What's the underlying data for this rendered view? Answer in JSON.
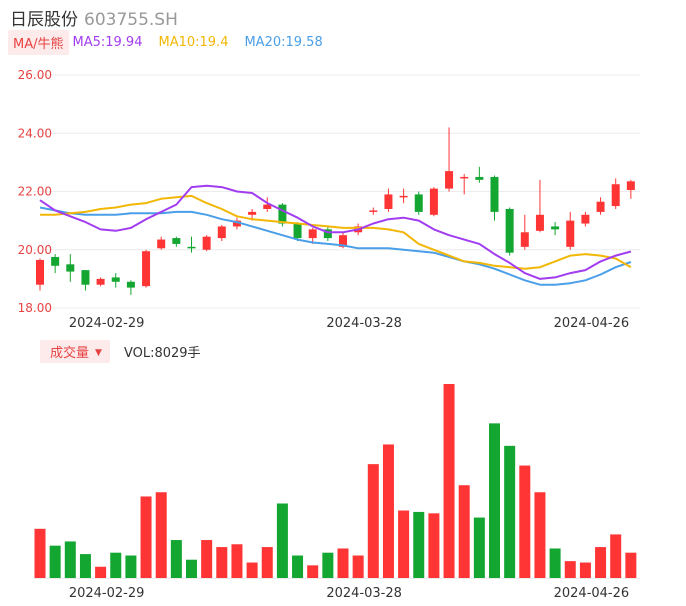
{
  "stock": {
    "name": "日辰股份",
    "code": "603755.SH"
  },
  "ma_legend": {
    "tag": "MA/牛熊",
    "items": [
      {
        "label": "MA5:19.94",
        "color": "#a23cf0"
      },
      {
        "label": "MA10:19.4",
        "color": "#f2b705"
      },
      {
        "label": "MA20:19.58",
        "color": "#4a9fe8"
      }
    ]
  },
  "volume_legend": {
    "tag": "成交量",
    "caret": "▼",
    "text": "VOL:8029手"
  },
  "colors": {
    "up": "#ff3434",
    "down": "#13a631",
    "axis_label": "#e84343",
    "grid": "#ececec"
  },
  "chart_data": {
    "type": "candlestick",
    "y_ticks": [
      "26.00",
      "24.00",
      "22.00",
      "20.00",
      "18.00"
    ],
    "ylim": [
      18,
      26
    ],
    "x_tick_labels": [
      {
        "label": "2024-02-29",
        "index": 4
      },
      {
        "label": "2024-03-28",
        "index": 21
      },
      {
        "label": "2024-04-26",
        "index": 36
      }
    ],
    "candles": [
      {
        "o": 18.8,
        "c": 19.65,
        "h": 19.7,
        "l": 18.6
      },
      {
        "o": 19.75,
        "c": 19.45,
        "h": 19.85,
        "l": 19.2
      },
      {
        "o": 19.5,
        "c": 19.25,
        "h": 19.85,
        "l": 18.9
      },
      {
        "o": 19.3,
        "c": 18.8,
        "h": 19.3,
        "l": 18.6
      },
      {
        "o": 18.8,
        "c": 19.0,
        "h": 19.05,
        "l": 18.75
      },
      {
        "o": 19.05,
        "c": 18.9,
        "h": 19.2,
        "l": 18.7
      },
      {
        "o": 18.9,
        "c": 18.7,
        "h": 18.95,
        "l": 18.45
      },
      {
        "o": 18.75,
        "c": 19.95,
        "h": 20.0,
        "l": 18.7
      },
      {
        "o": 20.05,
        "c": 20.35,
        "h": 20.45,
        "l": 20.0
      },
      {
        "o": 20.4,
        "c": 20.2,
        "h": 20.45,
        "l": 20.1
      },
      {
        "o": 20.1,
        "c": 20.05,
        "h": 20.45,
        "l": 19.9
      },
      {
        "o": 20.0,
        "c": 20.45,
        "h": 20.5,
        "l": 19.95
      },
      {
        "o": 20.4,
        "c": 20.8,
        "h": 20.85,
        "l": 20.3
      },
      {
        "o": 20.8,
        "c": 21.0,
        "h": 21.1,
        "l": 20.7
      },
      {
        "o": 21.2,
        "c": 21.3,
        "h": 21.4,
        "l": 21.0
      },
      {
        "o": 21.4,
        "c": 21.55,
        "h": 21.8,
        "l": 21.3
      },
      {
        "o": 21.55,
        "c": 20.9,
        "h": 21.6,
        "l": 20.8
      },
      {
        "o": 20.9,
        "c": 20.4,
        "h": 20.95,
        "l": 20.3
      },
      {
        "o": 20.4,
        "c": 20.7,
        "h": 20.75,
        "l": 20.2
      },
      {
        "o": 20.7,
        "c": 20.4,
        "h": 20.8,
        "l": 20.3
      },
      {
        "o": 20.1,
        "c": 20.5,
        "h": 20.6,
        "l": 20.05
      },
      {
        "o": 20.6,
        "c": 20.8,
        "h": 20.9,
        "l": 20.5
      },
      {
        "o": 21.3,
        "c": 21.35,
        "h": 21.45,
        "l": 21.2
      },
      {
        "o": 21.4,
        "c": 21.9,
        "h": 22.1,
        "l": 21.3
      },
      {
        "o": 21.8,
        "c": 21.85,
        "h": 22.1,
        "l": 21.6
      },
      {
        "o": 21.9,
        "c": 21.3,
        "h": 22.0,
        "l": 21.2
      },
      {
        "o": 21.2,
        "c": 22.1,
        "h": 22.15,
        "l": 21.15
      },
      {
        "o": 22.1,
        "c": 22.7,
        "h": 24.2,
        "l": 22.0
      },
      {
        "o": 22.45,
        "c": 22.5,
        "h": 22.6,
        "l": 21.9
      },
      {
        "o": 22.5,
        "c": 22.4,
        "h": 22.85,
        "l": 22.3
      },
      {
        "o": 22.5,
        "c": 21.3,
        "h": 22.55,
        "l": 21.0
      },
      {
        "o": 21.4,
        "c": 19.9,
        "h": 21.45,
        "l": 19.8
      },
      {
        "o": 20.1,
        "c": 20.6,
        "h": 21.2,
        "l": 20.0
      },
      {
        "o": 20.65,
        "c": 21.2,
        "h": 22.4,
        "l": 20.6
      },
      {
        "o": 20.8,
        "c": 20.7,
        "h": 20.95,
        "l": 20.5
      },
      {
        "o": 20.1,
        "c": 21.0,
        "h": 21.3,
        "l": 20.0
      },
      {
        "o": 20.9,
        "c": 21.2,
        "h": 21.3,
        "l": 20.8
      },
      {
        "o": 21.3,
        "c": 21.65,
        "h": 21.8,
        "l": 21.2
      },
      {
        "o": 21.5,
        "c": 22.25,
        "h": 22.45,
        "l": 21.4
      },
      {
        "o": 22.05,
        "c": 22.35,
        "h": 22.4,
        "l": 21.75
      }
    ],
    "ma5": [
      21.7,
      21.35,
      21.15,
      20.95,
      20.7,
      20.65,
      20.75,
      21.05,
      21.3,
      21.55,
      22.15,
      22.2,
      22.15,
      22.0,
      21.95,
      21.6,
      21.35,
      21.1,
      20.8,
      20.6,
      20.6,
      20.7,
      20.9,
      21.05,
      21.1,
      21.0,
      20.7,
      20.5,
      20.35,
      20.2,
      19.85,
      19.55,
      19.2,
      19.0,
      19.05,
      19.2,
      19.3,
      19.6,
      19.8,
      19.94
    ],
    "ma10": [
      21.2,
      21.2,
      21.25,
      21.3,
      21.4,
      21.45,
      21.55,
      21.6,
      21.75,
      21.8,
      21.85,
      21.6,
      21.4,
      21.15,
      21.05,
      21.0,
      20.95,
      20.9,
      20.85,
      20.8,
      20.75,
      20.75,
      20.75,
      20.7,
      20.6,
      20.2,
      20.0,
      19.8,
      19.6,
      19.55,
      19.45,
      19.4,
      19.35,
      19.4,
      19.6,
      19.8,
      19.85,
      19.8,
      19.7,
      19.4
    ],
    "ma20": [
      21.45,
      21.35,
      21.25,
      21.2,
      21.2,
      21.2,
      21.25,
      21.25,
      21.25,
      21.3,
      21.3,
      21.2,
      21.05,
      20.95,
      20.8,
      20.65,
      20.5,
      20.35,
      20.25,
      20.2,
      20.15,
      20.05,
      20.05,
      20.05,
      20.0,
      19.95,
      19.9,
      19.75,
      19.6,
      19.5,
      19.35,
      19.15,
      18.95,
      18.8,
      18.8,
      18.85,
      18.95,
      19.15,
      19.4,
      19.58
    ],
    "volume": [
      35,
      23,
      26,
      17,
      8,
      18,
      16,
      58,
      61,
      27,
      13,
      27,
      22,
      24,
      11,
      22,
      53,
      16,
      9,
      18,
      21,
      16,
      81,
      95,
      48,
      47,
      46,
      138,
      66,
      43,
      110,
      94,
      80,
      61,
      21,
      12,
      11,
      22,
      31,
      18
    ]
  }
}
